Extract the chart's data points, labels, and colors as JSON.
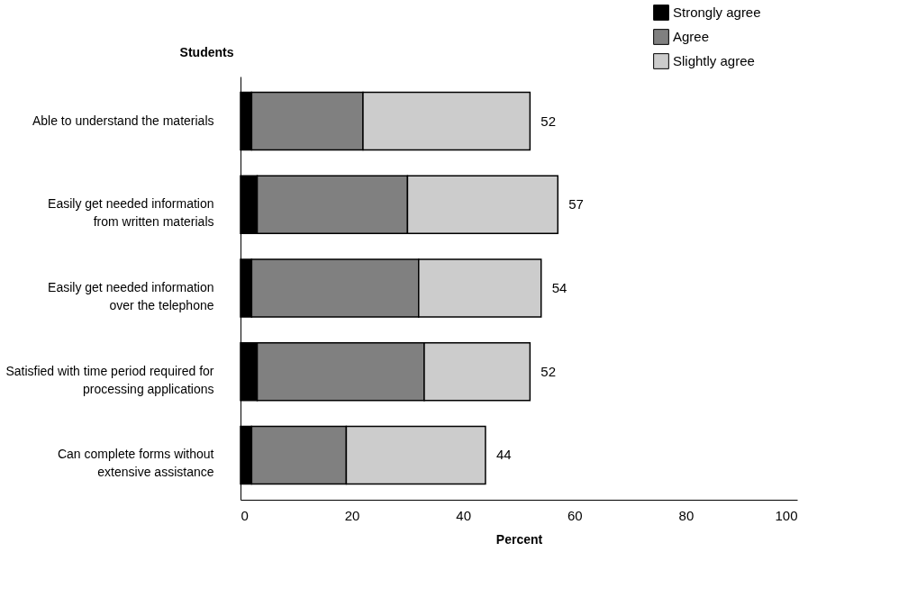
{
  "chart_data": {
    "type": "bar",
    "orientation": "horizontal",
    "stacked": true,
    "ylabel": "Students",
    "xlabel": "Percent",
    "categories": [
      "Able to understand the materials",
      "Easily get needed information\nfrom written materials",
      "Easily get needed information\nover the telephone",
      "Satisfied with time period required for\nprocessing applications",
      "Can complete forms without\nextensive assistance"
    ],
    "series": [
      {
        "name": "Strongly agree",
        "color": "#000000",
        "values": [
          2,
          3,
          2,
          3,
          2
        ]
      },
      {
        "name": "Agree",
        "color": "#808080",
        "values": [
          20,
          27,
          30,
          30,
          17
        ]
      },
      {
        "name": "Slightly agree",
        "color": "#cccccc",
        "values": [
          30,
          27,
          22,
          19,
          25
        ]
      }
    ],
    "totals": [
      "52",
      "57",
      "54",
      "52",
      "44"
    ],
    "xlim": [
      0,
      100
    ],
    "xticks": [
      0,
      20,
      40,
      60,
      80,
      100
    ],
    "grid": false,
    "legend": "top right"
  }
}
